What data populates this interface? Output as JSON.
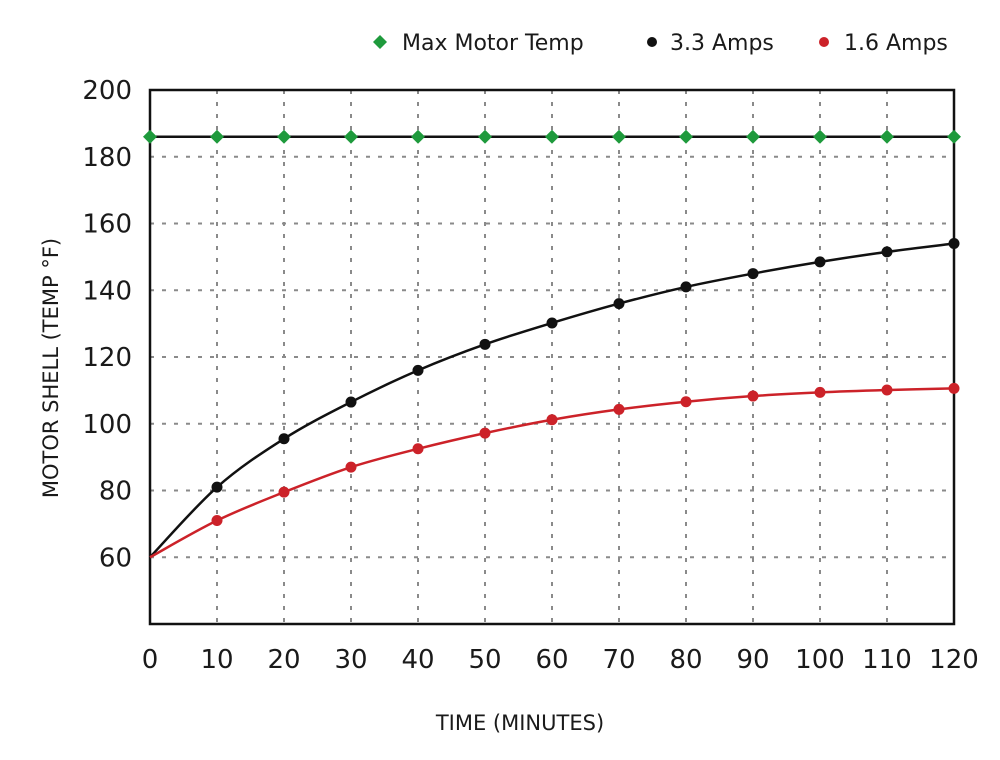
{
  "chart_data": {
    "type": "line",
    "xlabel": "TIME (MINUTES)",
    "ylabel": "MOTOR SHELL (TEMP °F)",
    "xlim": [
      0,
      120
    ],
    "ylim": [
      40,
      200
    ],
    "x_ticks": [
      0,
      10,
      20,
      30,
      40,
      50,
      60,
      70,
      80,
      90,
      100,
      110,
      120
    ],
    "y_ticks": [
      60,
      80,
      100,
      120,
      140,
      160,
      180,
      200
    ],
    "grid": true,
    "legend_position": "top-right",
    "series": [
      {
        "name": "Max Motor Temp",
        "color": "#1e9a3c",
        "marker": "diamond",
        "x": [
          0,
          10,
          20,
          30,
          40,
          50,
          60,
          70,
          80,
          90,
          100,
          110,
          120
        ],
        "y": [
          186,
          186,
          186,
          186,
          186,
          186,
          186,
          186,
          186,
          186,
          186,
          186,
          186
        ]
      },
      {
        "name": "3.3 Amps",
        "color": "#111111",
        "marker": "circle",
        "x": [
          0,
          10,
          20,
          30,
          40,
          50,
          60,
          70,
          80,
          90,
          100,
          110,
          120
        ],
        "y": [
          60,
          81,
          95.5,
          106.5,
          116,
          123.8,
          130.2,
          136,
          141,
          145,
          148.5,
          151.5,
          154
        ]
      },
      {
        "name": "1.6 Amps",
        "color": "#cc2229",
        "marker": "circle",
        "x": [
          0,
          10,
          20,
          30,
          40,
          50,
          60,
          70,
          80,
          90,
          100,
          110,
          120
        ],
        "y": [
          60,
          71,
          79.5,
          87,
          92.5,
          97.2,
          101.2,
          104.3,
          106.6,
          108.3,
          109.4,
          110.1,
          110.6
        ]
      }
    ]
  }
}
